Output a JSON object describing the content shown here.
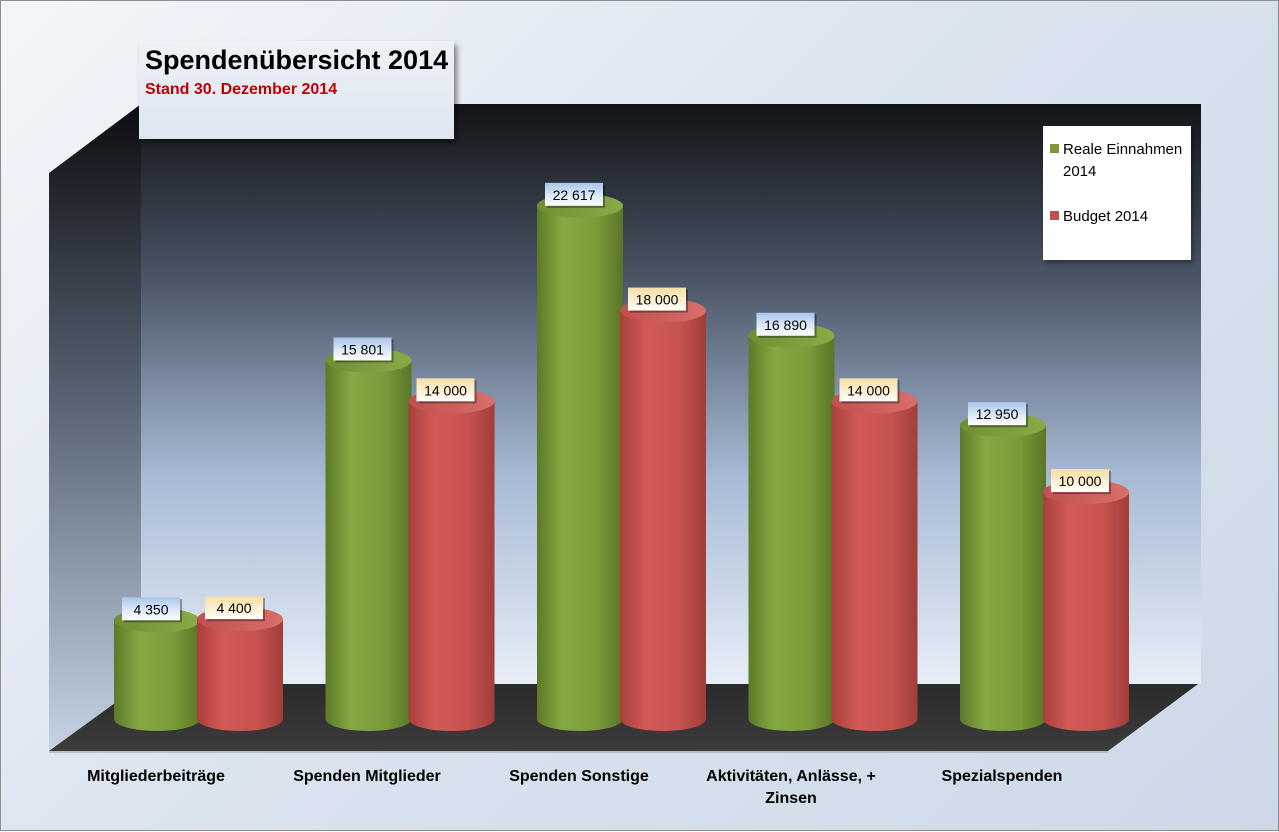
{
  "chart_data": {
    "type": "bar",
    "title": "Spendenübersicht 2014",
    "subtitle": "Stand 30. Dezember 2014",
    "categories": [
      "Mitgliederbeiträge",
      "Spenden Mitglieder",
      "Spenden Sonstige",
      "Aktivitäten, Anlässe, + Zinsen",
      "Spezialspenden"
    ],
    "series": [
      {
        "name": "Reale Einnahmen 2014",
        "values": [
          4350,
          15801,
          22617,
          16890,
          12950
        ],
        "labels": [
          "4 350",
          "15 801",
          "22 617",
          "16 890",
          "12 950"
        ],
        "color": "#7a9a3a"
      },
      {
        "name": "Budget 2014",
        "values": [
          4400,
          14000,
          18000,
          14000,
          10000
        ],
        "labels": [
          "4 400",
          "14 000",
          "18 000",
          "14 000",
          "10 000"
        ],
        "color": "#c0504d"
      }
    ],
    "style": "3d-cylinder",
    "legend_position": "top-right",
    "grid": false,
    "colors": {
      "series1": "#7a9a3a",
      "series2": "#c0504d",
      "title": "#000000",
      "subtitle": "#c00000",
      "label_bg_series1": "#c6d9f1",
      "label_bg_series2": "#fbecc7"
    }
  }
}
